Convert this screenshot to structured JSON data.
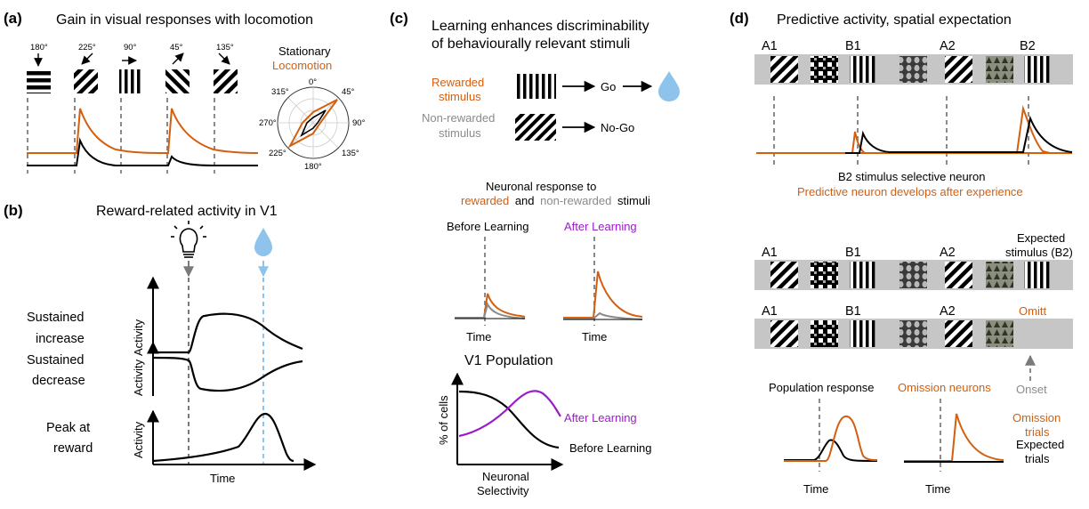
{
  "panel_a": {
    "label": "(a)",
    "title": "Gain in visual responses with locomotion",
    "angles": [
      "180°",
      "225°",
      "90°",
      "45°",
      "135°"
    ],
    "legend_stationary": "Stationary",
    "legend_locomotion": "Locomotion",
    "polar_ticks": [
      "0°",
      "45°",
      "90°",
      "135°",
      "180°",
      "225°",
      "270°",
      "315°"
    ]
  },
  "panel_b": {
    "label": "(b)",
    "title": "Reward-related activity in V1",
    "rows": [
      {
        "line1": "Sustained",
        "line2": "increase"
      },
      {
        "line1": "Sustained",
        "line2": "decrease"
      },
      {
        "line1": "Peak at",
        "line2": "reward"
      }
    ],
    "ylabel": "Activity",
    "xlabel": "Time"
  },
  "panel_c": {
    "label": "(c)",
    "title_line1": "Learning enhances discriminability",
    "title_line2": "of behaviourally relevant stimuli",
    "rewarded_line1": "Rewarded",
    "rewarded_line2": "stimulus",
    "nonrewarded_line1": "Non-rewarded",
    "nonrewarded_line2": "stimulus",
    "go": "Go",
    "nogo": "No-Go",
    "resp_line1": "Neuronal response to",
    "resp_rewarded": "rewarded",
    "resp_and": "and",
    "resp_nonrewarded": "non-rewarded",
    "resp_stimuli": "stimuli",
    "before_learning": "Before Learning",
    "after_learning": "After Learning",
    "time": "Time",
    "pop_title": "V1 Population",
    "pop_ylabel": "% of cells",
    "pop_xlabel_line1": "Neuronal",
    "pop_xlabel_line2": "Selectivity",
    "pop_after": "After Learning",
    "pop_before": "Before Learning"
  },
  "panel_d": {
    "label": "(d)",
    "title": "Predictive activity, spatial expectation",
    "seq_top": [
      "A1",
      "B1",
      "A2",
      "B2"
    ],
    "caption_line1": "B2 stimulus selective neuron",
    "caption_line2": "Predictive neuron develops after experience",
    "seq_mid": [
      "A1",
      "B1",
      "A2"
    ],
    "expected_line1": "Expected",
    "expected_line2": "stimulus (B2)",
    "omitt": "Omitt",
    "onset": "Onset",
    "population_response": "Population response",
    "omission_neurons": "Omission neurons",
    "omission_line1": "Omission",
    "omission_line2": "trials",
    "expected_trials_line1": "Expected",
    "expected_trials_line2": "trials",
    "time": "Time"
  },
  "colors": {
    "orange": "#d35f0f",
    "gray": "#8a8a8a",
    "purple": "#9b1bc9",
    "light_blue": "#8ec4ec"
  }
}
